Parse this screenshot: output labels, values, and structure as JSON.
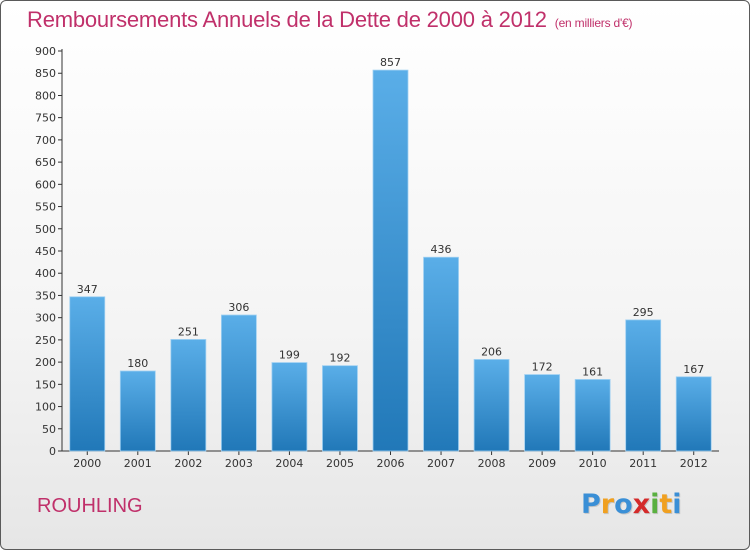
{
  "chart_data": {
    "type": "bar",
    "title": "Remboursements Annuels de la Dette de 2000 à 2012",
    "subtitle": "(en milliers d'€)",
    "categories": [
      "2000",
      "2001",
      "2002",
      "2003",
      "2004",
      "2005",
      "2006",
      "2007",
      "2008",
      "2009",
      "2010",
      "2011",
      "2012"
    ],
    "values": [
      347,
      180,
      251,
      306,
      199,
      192,
      857,
      436,
      206,
      172,
      161,
      295,
      167
    ],
    "yticks": [
      0,
      50,
      100,
      150,
      200,
      250,
      300,
      350,
      400,
      450,
      500,
      550,
      600,
      650,
      700,
      750,
      800,
      850,
      900
    ],
    "ylim": [
      0,
      900
    ],
    "xlabel": "",
    "ylabel": "",
    "grid": false,
    "legend": "none"
  },
  "commune": "ROUHLING",
  "logo": {
    "letters": [
      "P",
      "r",
      "o",
      "x",
      "i",
      "t",
      "i"
    ],
    "colors": [
      "#3a8fd6",
      "#f0a020",
      "#3a8fd6",
      "#d42a2a",
      "#5ab040",
      "#f0a020",
      "#3a8fd6"
    ]
  },
  "colors": {
    "accent": "#c0306a",
    "bar_light": "#5aaee8",
    "bar_dark": "#2178b8",
    "axis": "#333333"
  }
}
